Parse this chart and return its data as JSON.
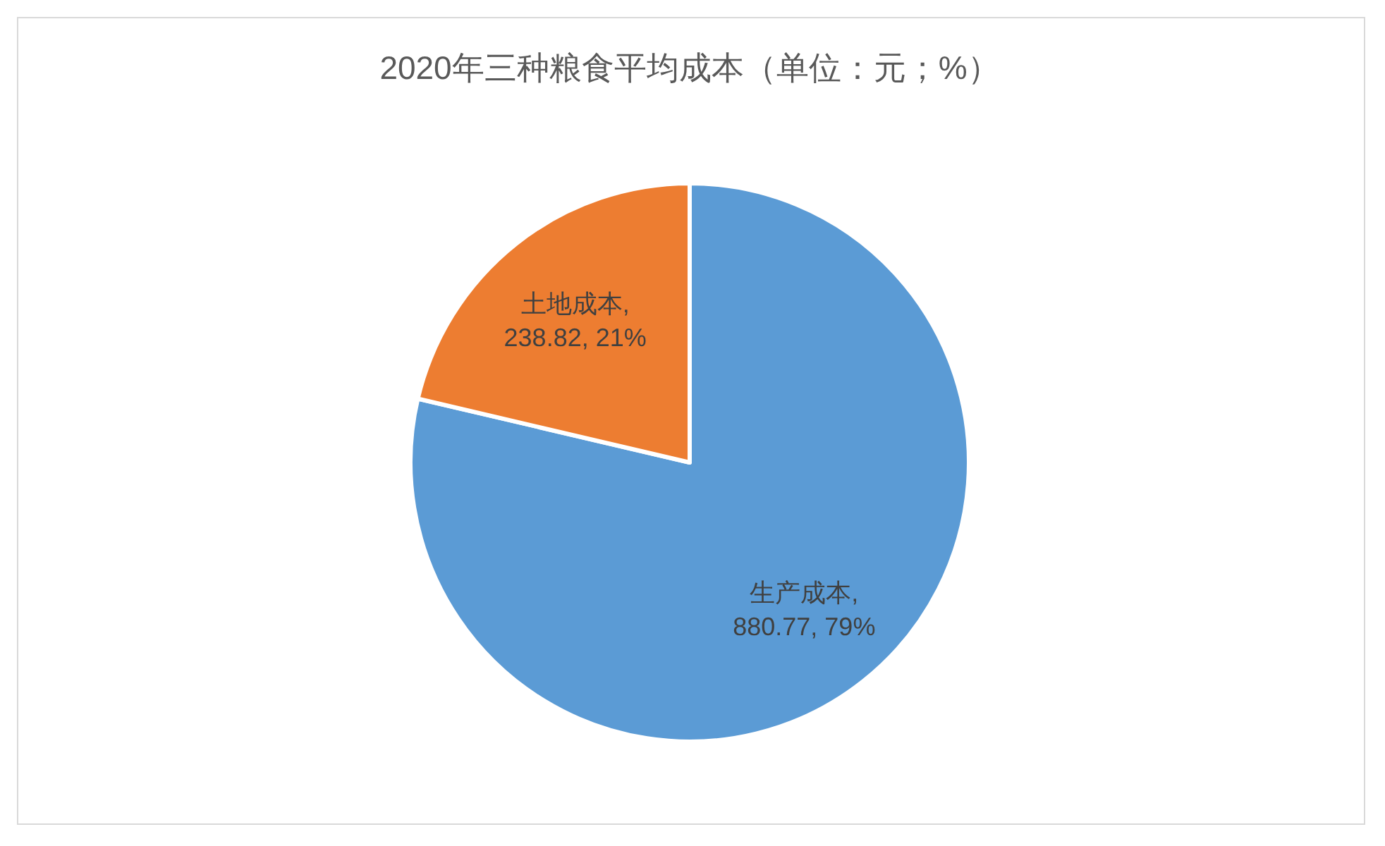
{
  "chart_data": {
    "type": "pie",
    "title": "2020年三种粮食平均成本（单位：元；%）",
    "categories": [
      "生产成本",
      "土地成本"
    ],
    "values": [
      880.77,
      238.82
    ],
    "value_labels": [
      ", 880.77, 79%",
      ", 238.82, 21%"
    ],
    "colors": [
      "#5b9bd5",
      "#ed7d31"
    ],
    "legend": false
  }
}
